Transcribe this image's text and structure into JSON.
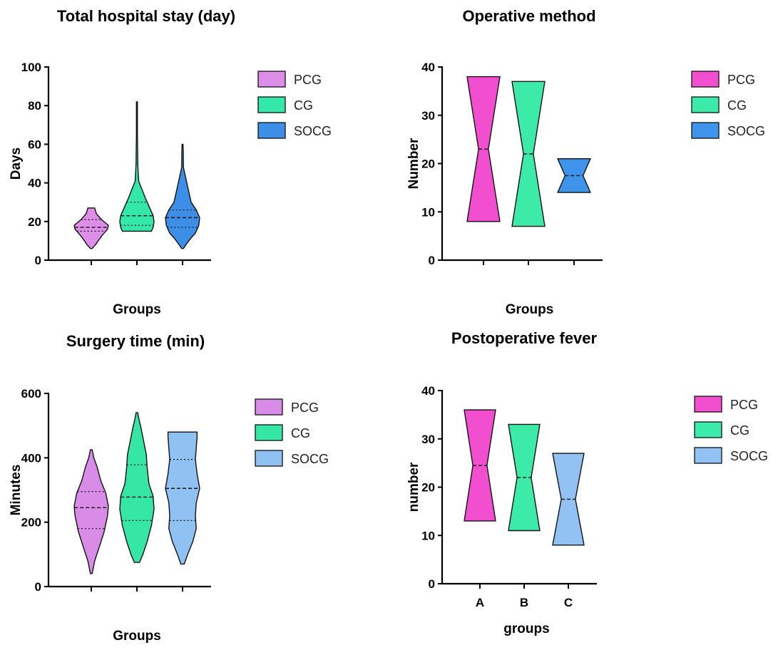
{
  "chart_data": [
    {
      "type": "violin",
      "title": "Total hospital stay (day)",
      "xlabel": "Groups",
      "ylabel": "Days",
      "ylim": [
        0,
        100
      ],
      "yticks": [
        0,
        20,
        40,
        60,
        80,
        100
      ],
      "categories": [
        "",
        "",
        ""
      ],
      "legend": {
        "position": "right",
        "entries": [
          "PCG",
          "CG",
          "SOCG"
        ]
      },
      "colors": [
        "#dd8ee6",
        "#33e8a8",
        "#3d8ee6"
      ],
      "series": [
        {
          "name": "PCG",
          "min": 6,
          "max": 27,
          "q1": 15,
          "median": 17,
          "q3": 21,
          "shape": [
            [
              6,
              0.05
            ],
            [
              8,
              0.25
            ],
            [
              10,
              0.4
            ],
            [
              13,
              0.65
            ],
            [
              16,
              0.95
            ],
            [
              18,
              1.0
            ],
            [
              21,
              0.6
            ],
            [
              24,
              0.3
            ],
            [
              27,
              0.2
            ]
          ]
        },
        {
          "name": "CG",
          "min": 15,
          "max": 82,
          "q1": 18,
          "median": 23,
          "q3": 30,
          "shape": [
            [
              15,
              0.85
            ],
            [
              17,
              0.95
            ],
            [
              20,
              1.0
            ],
            [
              23,
              0.95
            ],
            [
              27,
              0.75
            ],
            [
              32,
              0.5
            ],
            [
              37,
              0.28
            ],
            [
              41,
              0.1
            ],
            [
              50,
              0.05
            ],
            [
              65,
              0.03
            ],
            [
              82,
              0.03
            ]
          ]
        },
        {
          "name": "SOCG",
          "min": 6,
          "max": 60,
          "q1": 17,
          "median": 22,
          "q3": 26,
          "shape": [
            [
              6,
              0.05
            ],
            [
              8,
              0.2
            ],
            [
              11,
              0.45
            ],
            [
              14,
              0.75
            ],
            [
              18,
              0.95
            ],
            [
              22,
              1.0
            ],
            [
              26,
              0.8
            ],
            [
              30,
              0.5
            ],
            [
              36,
              0.35
            ],
            [
              42,
              0.2
            ],
            [
              48,
              0.05
            ],
            [
              55,
              0.04
            ],
            [
              60,
              0.03
            ]
          ]
        }
      ]
    },
    {
      "type": "violin",
      "title": "Operative method",
      "xlabel": "Groups",
      "ylabel": "Number",
      "ylim": [
        0,
        40
      ],
      "yticks": [
        0,
        10,
        20,
        30,
        40
      ],
      "categories": [
        "",
        "",
        ""
      ],
      "legend": {
        "position": "right",
        "entries": [
          "PCG",
          "CG",
          "SOCG"
        ]
      },
      "colors": [
        "#f24fd0",
        "#3deba8",
        "#3d94ea"
      ],
      "series": [
        {
          "name": "PCG",
          "min": 8,
          "max": 38,
          "median": 23,
          "shape": [
            [
              8,
              1.0
            ],
            [
              23,
              0.3
            ],
            [
              38,
              1.0
            ]
          ]
        },
        {
          "name": "CG",
          "min": 7,
          "max": 37,
          "median": 22,
          "shape": [
            [
              7,
              1.0
            ],
            [
              22,
              0.3
            ],
            [
              37,
              1.0
            ]
          ]
        },
        {
          "name": "SOCG",
          "min": 14,
          "max": 21,
          "median": 17.5,
          "shape": [
            [
              14,
              1.0
            ],
            [
              17.5,
              0.55
            ],
            [
              21,
              1.0
            ]
          ]
        }
      ]
    },
    {
      "type": "violin",
      "title": "Surgery time (min)",
      "xlabel": "Groups",
      "ylabel": "Minutes",
      "ylim": [
        0,
        600
      ],
      "yticks": [
        0,
        200,
        400,
        600
      ],
      "categories": [
        "",
        "",
        ""
      ],
      "legend": {
        "position": "right",
        "entries": [
          "PCG",
          "CG",
          "SOCG"
        ]
      },
      "colors": [
        "#d88ce8",
        "#35e6a5",
        "#8fc1f2"
      ],
      "series": [
        {
          "name": "PCG",
          "min": 40,
          "max": 425,
          "q1": 180,
          "median": 245,
          "q3": 295,
          "shape": [
            [
              40,
              0.05
            ],
            [
              80,
              0.2
            ],
            [
              120,
              0.45
            ],
            [
              170,
              0.75
            ],
            [
              220,
              0.95
            ],
            [
              250,
              1.0
            ],
            [
              290,
              0.85
            ],
            [
              330,
              0.55
            ],
            [
              370,
              0.35
            ],
            [
              400,
              0.15
            ],
            [
              425,
              0.05
            ]
          ]
        },
        {
          "name": "CG",
          "min": 75,
          "max": 540,
          "q1": 205,
          "median": 278,
          "q3": 378,
          "shape": [
            [
              75,
              0.15
            ],
            [
              100,
              0.35
            ],
            [
              140,
              0.6
            ],
            [
              190,
              0.85
            ],
            [
              240,
              1.0
            ],
            [
              280,
              0.95
            ],
            [
              320,
              0.7
            ],
            [
              370,
              0.6
            ],
            [
              410,
              0.55
            ],
            [
              450,
              0.4
            ],
            [
              490,
              0.25
            ],
            [
              525,
              0.1
            ],
            [
              540,
              0.05
            ]
          ]
        },
        {
          "name": "SOCG",
          "min": 70,
          "max": 480,
          "q1": 205,
          "median": 305,
          "q3": 395,
          "shape": [
            [
              70,
              0.1
            ],
            [
              100,
              0.3
            ],
            [
              140,
              0.6
            ],
            [
              180,
              0.8
            ],
            [
              220,
              0.75
            ],
            [
              260,
              0.8
            ],
            [
              305,
              1.0
            ],
            [
              350,
              0.85
            ],
            [
              395,
              0.75
            ],
            [
              430,
              0.8
            ],
            [
              465,
              0.85
            ],
            [
              480,
              0.85
            ]
          ]
        }
      ]
    },
    {
      "type": "violin",
      "title": "Postoperative fever",
      "xlabel": "groups",
      "ylabel": "number",
      "ylim": [
        0,
        40
      ],
      "yticks": [
        0,
        10,
        20,
        30,
        40
      ],
      "categories": [
        "A",
        "B",
        "C"
      ],
      "legend": {
        "position": "right",
        "entries": [
          "PCG",
          "CG",
          "SOCG"
        ]
      },
      "colors": [
        "#f24fd0",
        "#3deba8",
        "#92c2f3"
      ],
      "series": [
        {
          "name": "PCG",
          "min": 13,
          "max": 36,
          "median": 24.5,
          "shape": [
            [
              13,
              1.0
            ],
            [
              24.5,
              0.45
            ],
            [
              36,
              1.0
            ]
          ]
        },
        {
          "name": "CG",
          "min": 11,
          "max": 33,
          "median": 22,
          "shape": [
            [
              11,
              1.0
            ],
            [
              22,
              0.45
            ],
            [
              33,
              1.0
            ]
          ]
        },
        {
          "name": "SOCG",
          "min": 8,
          "max": 27,
          "median": 17.5,
          "shape": [
            [
              8,
              1.0
            ],
            [
              17.5,
              0.45
            ],
            [
              27,
              1.0
            ]
          ]
        }
      ]
    }
  ]
}
